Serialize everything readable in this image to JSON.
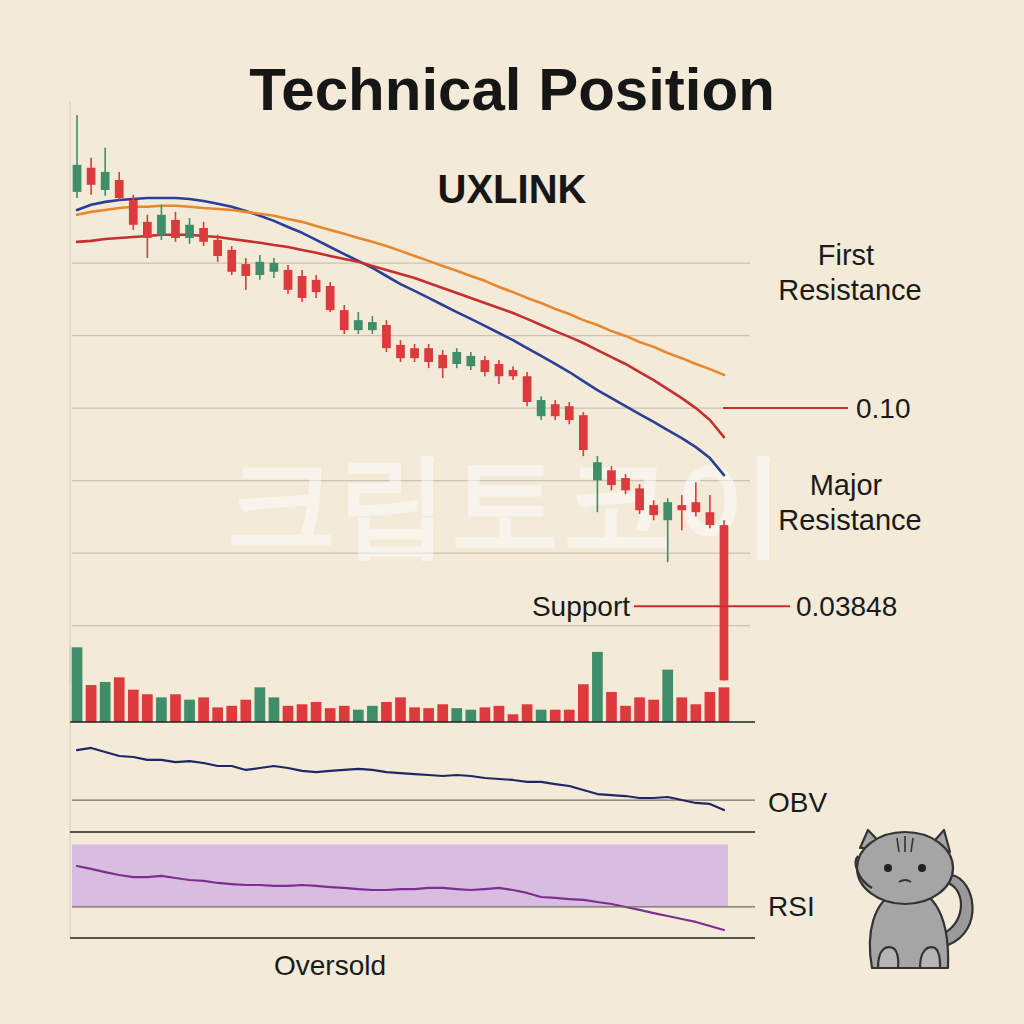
{
  "chart_data": [
    {
      "type": "candlestick",
      "title": "Technical Position",
      "subtitle": "UXLINK",
      "watermark": "크립토코이",
      "categories": [
        null,
        null,
        null,
        null,
        null,
        null,
        null,
        null,
        null,
        null,
        null,
        null,
        null,
        null,
        null,
        null,
        null,
        null,
        null,
        null,
        null,
        null,
        null,
        null,
        null,
        null,
        null,
        null,
        null,
        null,
        null,
        null,
        null,
        null,
        null,
        null,
        null,
        null,
        null,
        null,
        null,
        null,
        null,
        null,
        null,
        null,
        null
      ],
      "series": [
        {
          "type": "candlestick",
          "open": [
            0.1671,
            0.1746,
            0.1677,
            0.1708,
            0.1646,
            0.1578,
            0.1538,
            0.1584,
            0.1528,
            0.1559,
            0.1522,
            0.1491,
            0.1447,
            0.1413,
            0.1423,
            0.1429,
            0.141,
            0.1398,
            0.1379,
            0.1304,
            0.1242,
            0.1242,
            0.1258,
            0.1196,
            0.1186,
            0.1186,
            0.1165,
            0.1137,
            0.113,
            0.1149,
            0.1137,
            0.1118,
            0.1099,
            0.0975,
            0.1012,
            0.1006,
            0.0978,
            0.0776,
            0.0807,
            0.0783,
            0.0751,
            0.0699,
            0.0652,
            0.0699,
            0.0708,
            0.0677,
            0.0637
          ],
          "high": [
            0.191,
            0.1777,
            0.1808,
            0.1733,
            0.1662,
            0.16,
            0.1631,
            0.1609,
            0.159,
            0.1578,
            0.1538,
            0.1503,
            0.1466,
            0.1475,
            0.1466,
            0.1444,
            0.1429,
            0.1413,
            0.1391,
            0.132,
            0.1298,
            0.1286,
            0.1273,
            0.1211,
            0.1199,
            0.1199,
            0.118,
            0.1186,
            0.1174,
            0.1162,
            0.1149,
            0.113,
            0.1112,
            0.1037,
            0.1025,
            0.1019,
            0.0988,
            0.0851,
            0.082,
            0.0795,
            0.0764,
            0.0714,
            0.072,
            0.073,
            0.077,
            0.073,
            0.0652
          ],
          "low": [
            0.1652,
            0.1662,
            0.1659,
            0.1646,
            0.1553,
            0.1466,
            0.1522,
            0.1516,
            0.151,
            0.1503,
            0.1454,
            0.1413,
            0.1367,
            0.1398,
            0.1404,
            0.1354,
            0.1329,
            0.1342,
            0.1298,
            0.123,
            0.123,
            0.123,
            0.1174,
            0.1143,
            0.1143,
            0.1124,
            0.1093,
            0.1124,
            0.1118,
            0.1099,
            0.1075,
            0.1087,
            0.1006,
            0.0963,
            0.0963,
            0.095,
            0.0851,
            0.0677,
            0.0745,
            0.0733,
            0.0671,
            0.0652,
            0.0522,
            0.0621,
            0.0664,
            0.0627,
            0.0155
          ],
          "close": [
            0.1755,
            0.1693,
            0.1733,
            0.1652,
            0.1569,
            0.1528,
            0.16,
            0.1528,
            0.1569,
            0.1516,
            0.1472,
            0.1423,
            0.141,
            0.1454,
            0.1451,
            0.1367,
            0.1342,
            0.136,
            0.1304,
            0.1242,
            0.1273,
            0.1267,
            0.1186,
            0.1155,
            0.1155,
            0.1143,
            0.1124,
            0.1174,
            0.1162,
            0.1112,
            0.1099,
            0.1099,
            0.1019,
            0.1025,
            0.0975,
            0.0963,
            0.087,
            0.0832,
            0.0761,
            0.0745,
            0.0683,
            0.0668,
            0.0708,
            0.0683,
            0.0677,
            0.0637,
            0.0155
          ]
        },
        {
          "type": "line",
          "color": "#2a3f97",
          "values": [
            0.1615,
            0.1631,
            0.164,
            0.1646,
            0.1649,
            0.1652,
            0.1652,
            0.1652,
            0.1649,
            0.1643,
            0.1634,
            0.1625,
            0.1612,
            0.1597,
            0.1581,
            0.1562,
            0.1544,
            0.1522,
            0.15,
            0.1478,
            0.1457,
            0.1435,
            0.141,
            0.1385,
            0.1364,
            0.1342,
            0.132,
            0.1298,
            0.1277,
            0.1255,
            0.1233,
            0.1211,
            0.1186,
            0.1162,
            0.1137,
            0.1112,
            0.1084,
            0.1056,
            0.1031,
            0.1006,
            0.0981,
            0.0957,
            0.0932,
            0.0907,
            0.0879,
            0.0845,
            0.0792
          ]
        },
        {
          "type": "line",
          "color": "#c62f32",
          "values": [
            0.1516,
            0.1519,
            0.1525,
            0.1528,
            0.1531,
            0.1534,
            0.1538,
            0.1538,
            0.1538,
            0.1534,
            0.1531,
            0.1525,
            0.1519,
            0.1513,
            0.1506,
            0.15,
            0.1491,
            0.1482,
            0.1472,
            0.1463,
            0.1454,
            0.1441,
            0.1429,
            0.1416,
            0.1404,
            0.1388,
            0.1373,
            0.1357,
            0.1342,
            0.1326,
            0.1311,
            0.1295,
            0.1277,
            0.1258,
            0.1239,
            0.1221,
            0.1202,
            0.118,
            0.1158,
            0.1137,
            0.1112,
            0.1087,
            0.1059,
            0.1031,
            0.1,
            0.0963,
            0.091
          ]
        },
        {
          "type": "line",
          "color": "#e8872d",
          "values": [
            0.16,
            0.1609,
            0.1615,
            0.1621,
            0.1625,
            0.1625,
            0.1628,
            0.1628,
            0.1625,
            0.1621,
            0.1618,
            0.1615,
            0.1609,
            0.1603,
            0.1597,
            0.1587,
            0.1578,
            0.1565,
            0.1553,
            0.1541,
            0.1528,
            0.1516,
            0.1503,
            0.1488,
            0.1472,
            0.1457,
            0.1441,
            0.1426,
            0.141,
            0.1395,
            0.1376,
            0.136,
            0.1342,
            0.1326,
            0.1308,
            0.1292,
            0.1273,
            0.1258,
            0.1239,
            0.1224,
            0.1205,
            0.119,
            0.1171,
            0.1155,
            0.1137,
            0.1121,
            0.1103
          ]
        }
      ],
      "ylim": [
        0.015,
        0.195
      ],
      "yticks": [
        0.0325,
        0.055,
        0.0775,
        0.1,
        0.1225,
        0.145
      ],
      "grid": true,
      "tick_labels": false,
      "annotations": [
        {
          "label": "First Resistance",
          "value": 0.143
        },
        {
          "value": 0.1,
          "value_label": "0.10"
        },
        {
          "label": "Major Resistance",
          "value": 0.0714
        },
        {
          "label": "Support",
          "value": 0.03848,
          "value_label": "0.03848"
        }
      ]
    },
    {
      "type": "bar",
      "values": [
        97,
        48,
        52,
        58,
        42,
        36,
        32,
        36,
        29,
        32,
        19,
        21,
        29,
        45,
        32,
        21,
        23,
        26,
        18,
        21,
        16,
        21,
        26,
        32,
        19,
        18,
        23,
        18,
        16,
        19,
        21,
        10,
        23,
        16,
        16,
        16,
        49,
        91,
        39,
        21,
        32,
        29,
        68,
        32,
        23,
        39,
        45
      ],
      "colors": [
        "#3f8d69",
        "#dd3a3e",
        "#3f8d69",
        "#dd3a3e",
        "#dd3a3e",
        "#dd3a3e",
        "#3f8d69",
        "#dd3a3e",
        "#3f8d69",
        "#dd3a3e",
        "#dd3a3e",
        "#dd3a3e",
        "#dd3a3e",
        "#3f8d69",
        "#3f8d69",
        "#dd3a3e",
        "#dd3a3e",
        "#dd3a3e",
        "#dd3a3e",
        "#dd3a3e",
        "#3f8d69",
        "#3f8d69",
        "#dd3a3e",
        "#dd3a3e",
        "#dd3a3e",
        "#dd3a3e",
        "#dd3a3e",
        "#3f8d69",
        "#3f8d69",
        "#dd3a3e",
        "#dd3a3e",
        "#dd3a3e",
        "#dd3a3e",
        "#3f8d69",
        "#dd3a3e",
        "#dd3a3e",
        "#dd3a3e",
        "#3f8d69",
        "#dd3a3e",
        "#dd3a3e",
        "#dd3a3e",
        "#dd3a3e",
        "#3f8d69",
        "#dd3a3e",
        "#dd3a3e",
        "#dd3a3e",
        "#dd3a3e"
      ],
      "ylim": [
        0,
        100
      ],
      "tick_labels": false
    },
    {
      "type": "line",
      "title": "OBV",
      "color": "#1f2668",
      "values": [
        74.5,
        76.4,
        72.7,
        69.1,
        68.2,
        65.5,
        65.5,
        63.6,
        64.5,
        62.7,
        60,
        60,
        56.4,
        58.2,
        60,
        58.2,
        55.5,
        54.5,
        55.5,
        56.4,
        57.3,
        56.4,
        54.5,
        53.6,
        52.7,
        51.8,
        50.9,
        51.8,
        50.9,
        49.1,
        48.2,
        47.3,
        45.5,
        45.5,
        43.6,
        41.8,
        38.2,
        34.5,
        33.6,
        32.7,
        30.9,
        30.9,
        31.8,
        29.1,
        26.4,
        25.5,
        20
      ],
      "ylim": [
        0,
        100
      ],
      "yticks": [
        29
      ],
      "grid": true,
      "tick_labels": false
    },
    {
      "type": "line",
      "title": "RSI",
      "color": "#7d2f8f",
      "values": [
        56.2,
        54.3,
        52.3,
        50.4,
        49.1,
        49.1,
        49.8,
        48.5,
        47.2,
        46.6,
        45.3,
        44.6,
        44.0,
        44.0,
        43.4,
        43.4,
        44.0,
        43.4,
        42.7,
        42.1,
        41.4,
        40.8,
        40.8,
        41.4,
        41.4,
        42.1,
        42.1,
        41.4,
        40.8,
        41.4,
        42.1,
        40.8,
        38.9,
        36.3,
        35.7,
        35.0,
        34.4,
        33.1,
        31.8,
        29.9,
        28.0,
        26.0,
        24.1,
        22.2,
        20.3,
        17.7,
        15.1
      ],
      "ylim": [
        10,
        78
      ],
      "yticks": [
        30
      ],
      "band": [
        30,
        70
      ],
      "band_label": "Oversold",
      "grid": true,
      "tick_labels": false
    }
  ]
}
